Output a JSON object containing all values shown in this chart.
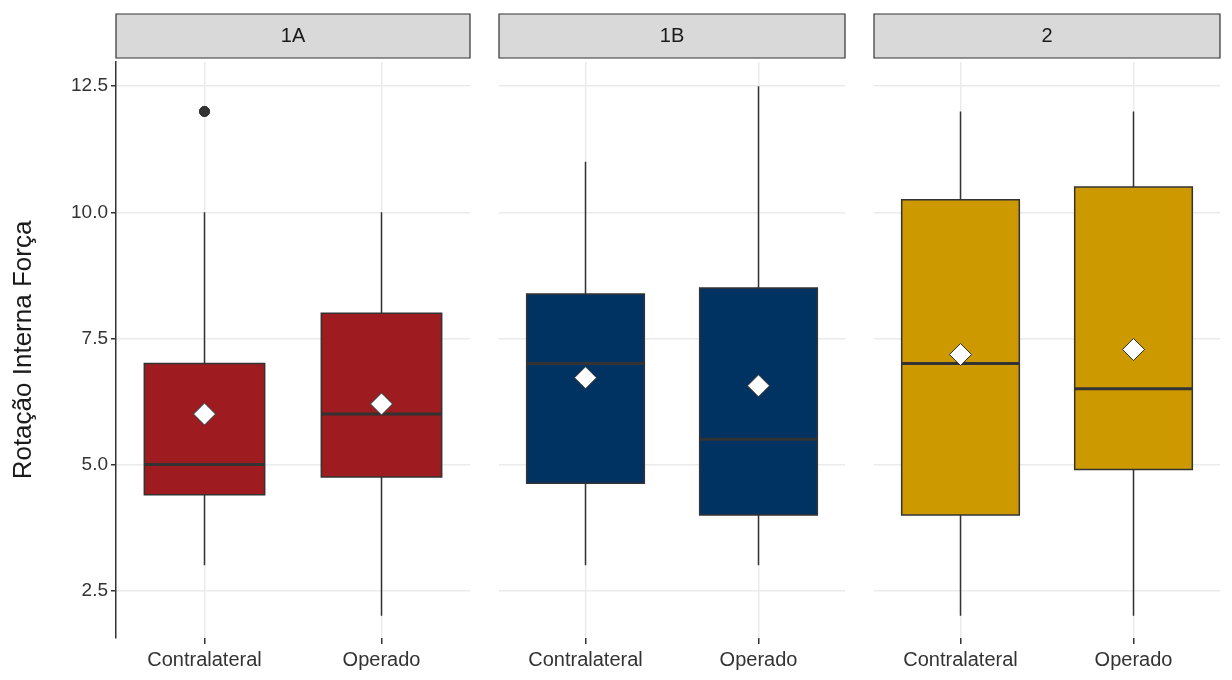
{
  "chart_data": [
    {
      "type": "box",
      "title": "1A",
      "ylabel": "Rotação Interna Força",
      "categories": [
        "Contralateral",
        "Operado"
      ],
      "ylim": [
        1.56,
        12.98
      ],
      "yticks": [
        2.5,
        {
          "value": 5,
          "label": "5.0"
        },
        7.5,
        {
          "value": 10,
          "label": "10.0"
        },
        12.5
      ],
      "grid": true,
      "marker": "diamond",
      "series": [
        {
          "color": "#9e1b20",
          "boxes": [
            {
              "low": 3,
              "q1": 4.4,
              "median": 5,
              "q3": 7,
              "high": 10,
              "mean": 6,
              "outliers": [
                12
              ]
            },
            {
              "low": 2,
              "q1": 4.75,
              "median": 6,
              "q3": 8,
              "high": 10,
              "mean": 6.2
            }
          ]
        }
      ]
    },
    {
      "type": "box",
      "title": "1B",
      "categories": [
        "Contralateral",
        "Operado"
      ],
      "ylim": [
        1.56,
        12.98
      ],
      "yticks": [
        2.5,
        5,
        7.5,
        10,
        12.5
      ],
      "grid": true,
      "marker": "diamond",
      "tick_labels": "x",
      "series": [
        {
          "color": "#003262",
          "boxes": [
            {
              "low": 3,
              "q1": 4.63,
              "median": 7,
              "q3": 8.38,
              "high": 11,
              "mean": 6.72
            },
            {
              "low": 3,
              "q1": 4,
              "median": 5.5,
              "q3": 8.5,
              "high": 12.5,
              "mean": 6.56
            }
          ]
        }
      ]
    },
    {
      "type": "box",
      "title": "2",
      "categories": [
        "Contralateral",
        "Operado"
      ],
      "ylim": [
        1.56,
        12.98
      ],
      "yticks": [
        2.5,
        5,
        7.5,
        10,
        12.5
      ],
      "grid": true,
      "marker": "diamond",
      "tick_labels": "x",
      "series": [
        {
          "color": "#cc9900",
          "boxes": [
            {
              "low": 2,
              "q1": 4,
              "median": 7,
              "q3": 10.25,
              "high": 12,
              "mean": 7.18
            },
            {
              "low": 2,
              "q1": 4.9,
              "median": 6.5,
              "q3": 10.5,
              "high": 12,
              "mean": 7.28
            }
          ]
        }
      ]
    }
  ]
}
